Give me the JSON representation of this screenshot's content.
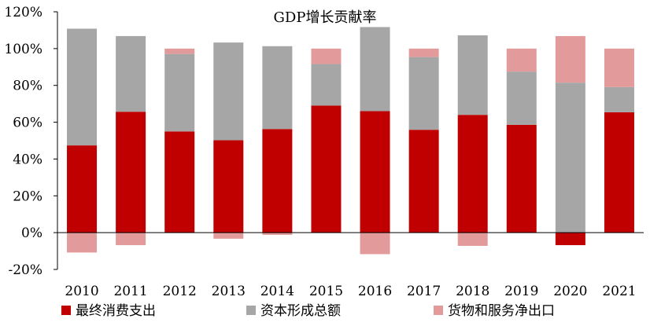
{
  "chart_data": {
    "type": "bar",
    "stacked": true,
    "title": "GDP增长贡献率",
    "categories": [
      "2010",
      "2011",
      "2012",
      "2013",
      "2014",
      "2015",
      "2016",
      "2017",
      "2018",
      "2019",
      "2020",
      "2021"
    ],
    "series": [
      {
        "name": "最终消费支出",
        "color": "#C00000",
        "values": [
          47.4,
          65.7,
          55.0,
          50.2,
          56.3,
          69.0,
          66.0,
          55.9,
          64.0,
          58.6,
          -6.8,
          65.4
        ]
      },
      {
        "name": "资本形成总额",
        "color": "#A6A6A6",
        "values": [
          63.4,
          41.1,
          42.1,
          53.1,
          45.0,
          22.6,
          45.7,
          39.5,
          43.2,
          28.9,
          81.5,
          13.7
        ]
      },
      {
        "name": "货物和服务净出口",
        "color": "#E39A9A",
        "values": [
          -10.8,
          -6.8,
          2.9,
          -3.3,
          -1.2,
          8.4,
          -11.7,
          4.6,
          -7.2,
          12.5,
          25.3,
          20.9
        ]
      }
    ],
    "ylim": [
      -20,
      120
    ],
    "yticks": [
      -20,
      0,
      20,
      40,
      60,
      80,
      100,
      120
    ],
    "ytick_labels": [
      "-20%",
      "0%",
      "20%",
      "40%",
      "60%",
      "80%",
      "100%",
      "120%"
    ],
    "xlabel": "",
    "ylabel": "",
    "legend_position": "bottom",
    "grid": false
  }
}
